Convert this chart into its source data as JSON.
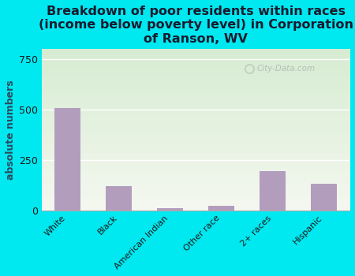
{
  "title": "Breakdown of poor residents within races\n(income below poverty level) in Corporation\nof Ranson, WV",
  "categories": [
    "White",
    "Black",
    "American Indian",
    "Other race",
    "2+ races",
    "Hispanic"
  ],
  "values": [
    505,
    120,
    10,
    20,
    195,
    130
  ],
  "bar_color": "#b39dbd",
  "ylabel": "absolute numbers",
  "ylim": [
    0,
    800
  ],
  "yticks": [
    0,
    250,
    500,
    750
  ],
  "background_outer": "#00e8f0",
  "background_plot_top_left": "#d6ecd2",
  "background_plot_bottom_right": "#f0f5e8",
  "grid_color": "#ffffff",
  "watermark": "City-Data.com",
  "title_fontsize": 11.5,
  "title_color": "#1a1a2e",
  "ylabel_color": "#2d4a5e",
  "tick_color": "#1a1a1a"
}
